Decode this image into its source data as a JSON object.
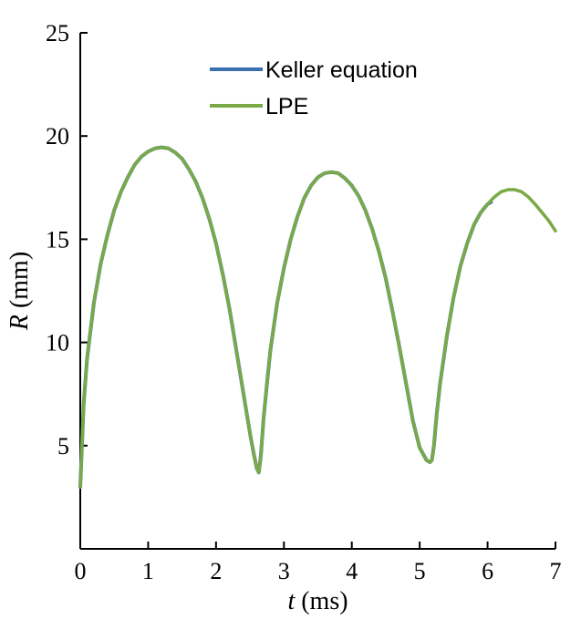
{
  "chart_data": {
    "type": "line",
    "xlabel_var": "t",
    "xlabel_unit": " (ms)",
    "ylabel_var": "R",
    "ylabel_unit": " (mm)",
    "xlim": [
      0,
      7
    ],
    "ylim": [
      0,
      25
    ],
    "xticks": [
      0,
      1,
      2,
      3,
      4,
      5,
      6,
      7
    ],
    "yticks": [
      5,
      10,
      15,
      20,
      25
    ],
    "grid": false,
    "legend_position": "top-right",
    "series": [
      {
        "name": "Keller equation",
        "color": "#3a6fb0",
        "x": [
          0.0,
          0.05,
          0.1,
          0.2,
          0.3,
          0.4,
          0.5,
          0.6,
          0.7,
          0.8,
          0.9,
          1.0,
          1.1,
          1.2,
          1.3,
          1.4,
          1.5,
          1.6,
          1.7,
          1.8,
          1.9,
          2.0,
          2.1,
          2.2,
          2.3,
          2.4,
          2.5,
          2.55,
          2.6,
          2.63,
          2.66,
          2.7,
          2.75,
          2.8,
          2.9,
          3.0,
          3.1,
          3.2,
          3.3,
          3.4,
          3.5,
          3.6,
          3.7,
          3.8,
          3.9,
          4.0,
          4.1,
          4.2,
          4.3,
          4.4,
          4.5,
          4.6,
          4.7,
          4.8,
          4.9,
          5.0,
          5.05,
          5.1,
          5.15,
          5.18,
          5.21,
          5.25,
          5.3,
          5.4,
          5.5,
          5.6,
          5.7,
          5.8,
          5.9,
          6.0,
          6.05
        ],
        "y": [
          3.0,
          7.0,
          9.2,
          11.9,
          13.8,
          15.2,
          16.4,
          17.3,
          18.0,
          18.6,
          19.0,
          19.25,
          19.4,
          19.45,
          19.4,
          19.2,
          18.9,
          18.4,
          17.8,
          17.0,
          16.0,
          14.8,
          13.3,
          11.6,
          9.6,
          7.6,
          5.6,
          4.7,
          3.9,
          3.7,
          4.5,
          6.3,
          8.0,
          9.6,
          11.9,
          13.6,
          15.0,
          16.1,
          17.0,
          17.6,
          18.0,
          18.2,
          18.25,
          18.2,
          17.95,
          17.6,
          17.1,
          16.4,
          15.5,
          14.4,
          13.1,
          11.5,
          9.8,
          8.0,
          6.2,
          4.9,
          4.6,
          4.3,
          4.2,
          4.3,
          5.0,
          6.5,
          8.0,
          10.3,
          12.2,
          13.7,
          14.8,
          15.7,
          16.3,
          16.7,
          16.8
        ]
      },
      {
        "name": "LPE",
        "color": "#7aaa45",
        "x": [
          0.0,
          0.05,
          0.1,
          0.2,
          0.3,
          0.4,
          0.5,
          0.6,
          0.7,
          0.8,
          0.9,
          1.0,
          1.1,
          1.2,
          1.3,
          1.4,
          1.5,
          1.6,
          1.7,
          1.8,
          1.9,
          2.0,
          2.1,
          2.2,
          2.3,
          2.4,
          2.5,
          2.55,
          2.6,
          2.63,
          2.66,
          2.7,
          2.75,
          2.8,
          2.9,
          3.0,
          3.1,
          3.2,
          3.3,
          3.4,
          3.5,
          3.6,
          3.7,
          3.8,
          3.9,
          4.0,
          4.1,
          4.2,
          4.3,
          4.4,
          4.5,
          4.6,
          4.7,
          4.8,
          4.9,
          5.0,
          5.05,
          5.1,
          5.15,
          5.18,
          5.21,
          5.25,
          5.3,
          5.4,
          5.5,
          5.6,
          5.7,
          5.8,
          5.9,
          6.0,
          6.1,
          6.2,
          6.3,
          6.4,
          6.5,
          6.6,
          6.7,
          6.8,
          6.9,
          7.0
        ],
        "y": [
          3.0,
          7.0,
          9.2,
          11.9,
          13.8,
          15.2,
          16.4,
          17.3,
          18.0,
          18.6,
          19.0,
          19.25,
          19.4,
          19.45,
          19.4,
          19.2,
          18.9,
          18.4,
          17.8,
          17.0,
          16.0,
          14.8,
          13.3,
          11.6,
          9.6,
          7.6,
          5.6,
          4.7,
          3.9,
          3.7,
          4.5,
          6.3,
          8.0,
          9.6,
          11.9,
          13.6,
          15.0,
          16.1,
          17.0,
          17.6,
          18.0,
          18.2,
          18.25,
          18.2,
          17.95,
          17.6,
          17.1,
          16.4,
          15.5,
          14.4,
          13.1,
          11.5,
          9.8,
          8.0,
          6.2,
          4.9,
          4.6,
          4.3,
          4.2,
          4.3,
          5.0,
          6.5,
          8.0,
          10.3,
          12.2,
          13.7,
          14.8,
          15.7,
          16.3,
          16.7,
          17.05,
          17.3,
          17.4,
          17.4,
          17.3,
          17.05,
          16.7,
          16.3,
          15.9,
          15.4
        ]
      }
    ]
  }
}
